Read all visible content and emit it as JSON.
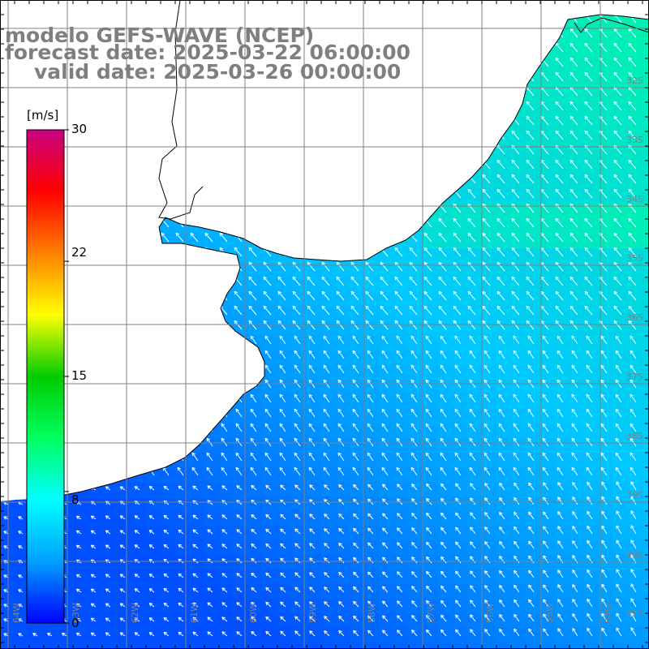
{
  "title": {
    "model": "modelo GEFS-WAVE (NCEP)",
    "forecast": "forecast date: 2025-03-22 06:00:00",
    "valid": "valid date: 2025-03-26 00:00:00"
  },
  "colorbar": {
    "unit": "[m/s]",
    "min": 0,
    "max": 30,
    "ticks": [
      "30",
      "22",
      "15",
      "8",
      "0"
    ],
    "tick_values": [
      30,
      22,
      15,
      8,
      0
    ],
    "colors": [
      "#0000ff",
      "#00a0ff",
      "#00ffff",
      "#00ff60",
      "#00cc00",
      "#ffff00",
      "#ff8000",
      "#ff0000",
      "#c80080"
    ]
  },
  "map": {
    "variable": "wind speed and direction",
    "region": "South Atlantic coast of Uruguay, Río de la Plata and Buenos Aires province",
    "lat_labels": [
      "32S",
      "33S",
      "34S",
      "35S",
      "36S",
      "37S",
      "38S",
      "39S",
      "40S",
      "41S"
    ],
    "lon_labels": [
      "64W",
      "63W",
      "62W",
      "61W",
      "60W",
      "59W",
      "58W",
      "57W",
      "56W",
      "55W",
      "54W"
    ],
    "colors": {
      "land": "#ffffff",
      "coast": "#000000",
      "grid": "#808080",
      "arrows": "#ffffff",
      "title": "#7f7f7f",
      "ocean_low": "#0050ff",
      "ocean_mid": "#00c8ff",
      "ocean_high": "#00f0b4"
    }
  }
}
